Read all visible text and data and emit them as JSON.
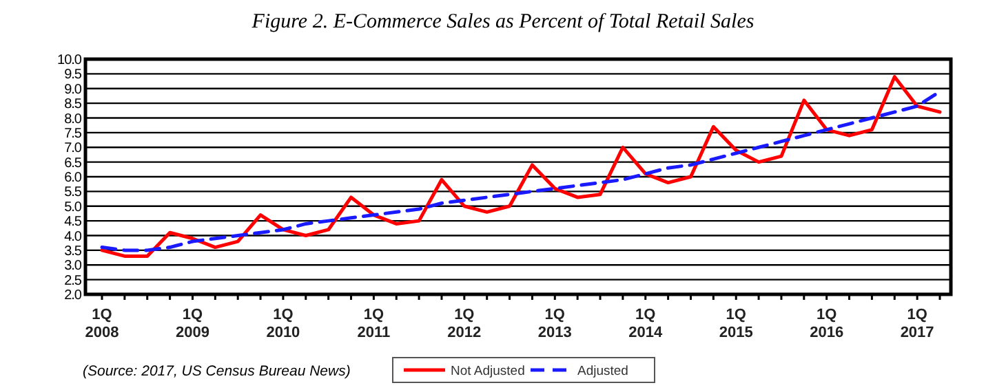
{
  "chart_data": {
    "type": "line",
    "title": "Figure 2. E-Commerce Sales as Percent of Total Retail Sales",
    "categories": [
      "1Q 2008",
      null,
      null,
      null,
      "1Q 2009",
      null,
      null,
      null,
      "1Q 2010",
      null,
      null,
      null,
      "1Q 2011",
      null,
      null,
      null,
      "1Q 2012",
      null,
      null,
      null,
      "1Q 2013",
      null,
      null,
      null,
      "1Q 2014",
      null,
      null,
      null,
      "1Q 2015",
      null,
      null,
      null,
      "1Q 2016",
      null,
      null,
      null,
      "1Q 2017",
      null
    ],
    "series": [
      {
        "name": "Not Adjusted",
        "color": "#ff0000",
        "line_style": "solid",
        "values": [
          3.5,
          3.3,
          3.3,
          4.1,
          3.9,
          3.6,
          3.8,
          4.7,
          4.2,
          4.0,
          4.2,
          5.3,
          4.7,
          4.4,
          4.5,
          5.9,
          5.0,
          4.8,
          5.0,
          6.4,
          5.6,
          5.3,
          5.4,
          7.0,
          6.1,
          5.8,
          6.0,
          7.7,
          6.9,
          6.5,
          6.7,
          8.6,
          7.6,
          7.4,
          7.6,
          9.4,
          8.4,
          8.2
        ]
      },
      {
        "name": "Adjusted",
        "color": "#1a1aff",
        "line_style": "dashed",
        "values": [
          3.6,
          3.5,
          3.5,
          3.6,
          3.8,
          3.9,
          4.0,
          4.1,
          4.2,
          4.4,
          4.5,
          4.6,
          4.7,
          4.8,
          4.9,
          5.1,
          5.2,
          5.3,
          5.4,
          5.5,
          5.6,
          5.7,
          5.8,
          5.9,
          6.1,
          6.3,
          6.4,
          6.6,
          6.8,
          7.0,
          7.2,
          7.4,
          7.6,
          7.8,
          8.0,
          8.2,
          8.4,
          8.9
        ]
      }
    ],
    "ylim": [
      2,
      10
    ],
    "yticks": [
      {
        "value": 2,
        "label": "2.0"
      },
      {
        "value": 2.5,
        "label": "2.5"
      },
      {
        "value": 3,
        "label": "3.0"
      },
      {
        "value": 3.5,
        "label": "3.5"
      },
      {
        "value": 4,
        "label": "4.0"
      },
      {
        "value": 4.5,
        "label": "4.5"
      },
      {
        "value": 5,
        "label": "5.0"
      },
      {
        "value": 5.5,
        "label": "5.5"
      },
      {
        "value": 6,
        "label": "6.0"
      },
      {
        "value": 6.5,
        "label": "6.5"
      },
      {
        "value": 7,
        "label": "7.0"
      },
      {
        "value": 7.5,
        "label": "7.5"
      },
      {
        "value": 8,
        "label": "8.0"
      },
      {
        "value": 8.5,
        "label": "8.5"
      },
      {
        "value": 9,
        "label": "9.0"
      },
      {
        "value": 9.5,
        "label": "9.5"
      },
      {
        "value": 10,
        "label": "10.0"
      }
    ],
    "grid": "y",
    "legend": "bottom",
    "marker": "none",
    "annotations": [
      "(Source: 2017, US Census Bureau News)"
    ]
  }
}
